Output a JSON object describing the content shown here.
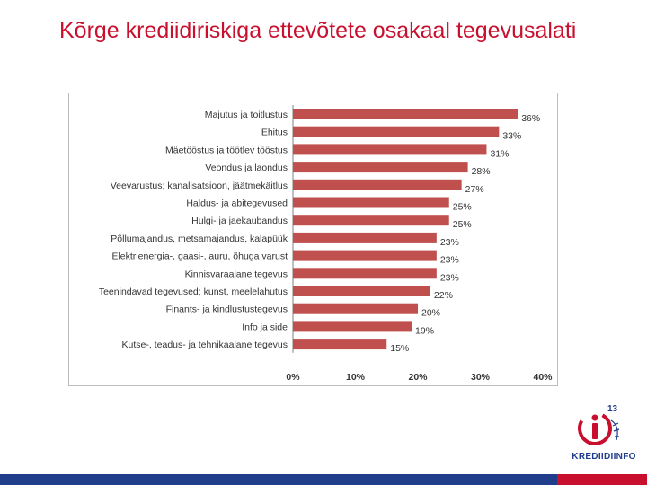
{
  "slide": {
    "title": "Kõrge krediidiriskiga ettevõtete osakaal tegevusalati"
  },
  "logo": {
    "text": "KREDIIDIINFO",
    "anniversary": "13",
    "colors": {
      "primary": "#1f3d8a",
      "accent": "#c8102e"
    }
  },
  "chart_data": {
    "type": "bar",
    "orientation": "horizontal",
    "categories": [
      "Majutus ja toitlustus",
      "Ehitus",
      "Mäetööstus ja töötlev tööstus",
      "Veondus ja laondus",
      "Veevarustus; kanalisatsioon, jäätmekäitlus",
      "Haldus- ja abitegevused",
      "Hulgi- ja jaekaubandus",
      "Põllumajandus, metsamajandus, kalapüük",
      "Elektrienergia-, gaasi-, auru, õhuga varust",
      "Kinnisvaraalane tegevus",
      "Teenindavad tegevused; kunst, meelelahutus",
      "Finants- ja kindlustustegevus",
      "Info ja side",
      "Kutse-, teadus- ja tehnikaalane tegevus"
    ],
    "values": [
      36,
      33,
      31,
      28,
      27,
      25,
      25,
      23,
      23,
      23,
      22,
      20,
      19,
      15
    ],
    "value_labels": [
      "36%",
      "33%",
      "31%",
      "28%",
      "27%",
      "25%",
      "25%",
      "23%",
      "23%",
      "23%",
      "22%",
      "20%",
      "19%",
      "15%"
    ],
    "xlim": [
      0,
      40
    ],
    "x_ticks": [
      0,
      10,
      20,
      30,
      40
    ],
    "x_tick_labels": [
      "0%",
      "10%",
      "20%",
      "30%",
      "40%"
    ],
    "grid": false,
    "bar_color": "#c0504d"
  }
}
